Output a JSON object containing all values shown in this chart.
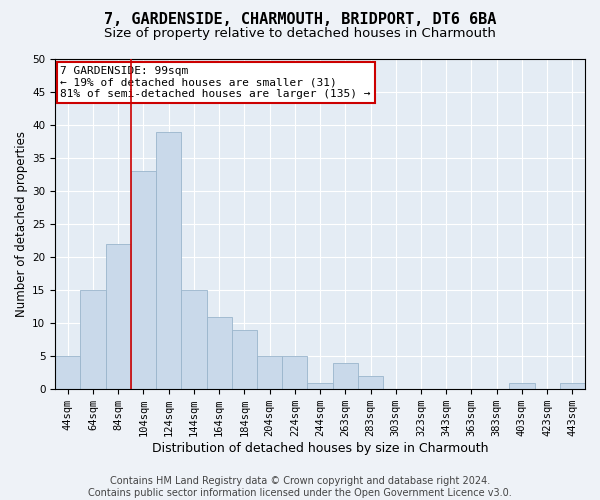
{
  "title1": "7, GARDENSIDE, CHARMOUTH, BRIDPORT, DT6 6BA",
  "title2": "Size of property relative to detached houses in Charmouth",
  "xlabel": "Distribution of detached houses by size in Charmouth",
  "ylabel": "Number of detached properties",
  "categories": [
    "44sqm",
    "64sqm",
    "84sqm",
    "104sqm",
    "124sqm",
    "144sqm",
    "164sqm",
    "184sqm",
    "204sqm",
    "224sqm",
    "244sqm",
    "263sqm",
    "283sqm",
    "303sqm",
    "323sqm",
    "343sqm",
    "363sqm",
    "383sqm",
    "403sqm",
    "423sqm",
    "443sqm"
  ],
  "values": [
    5,
    15,
    22,
    33,
    39,
    15,
    11,
    9,
    5,
    5,
    1,
    4,
    2,
    0,
    0,
    0,
    0,
    0,
    1,
    0,
    1
  ],
  "bar_color": "#c9d9ea",
  "bar_edge_color": "#9ab5cc",
  "vline_color": "#cc0000",
  "annotation_text": "7 GARDENSIDE: 99sqm\n← 19% of detached houses are smaller (31)\n81% of semi-detached houses are larger (135) →",
  "annotation_box_color": "#ffffff",
  "annotation_box_edge_color": "#cc0000",
  "ylim": [
    0,
    50
  ],
  "yticks": [
    0,
    5,
    10,
    15,
    20,
    25,
    30,
    35,
    40,
    45,
    50
  ],
  "footer1": "Contains HM Land Registry data © Crown copyright and database right 2024.",
  "footer2": "Contains public sector information licensed under the Open Government Licence v3.0.",
  "bg_color": "#eef2f7",
  "plot_bg_color": "#e4ecf4",
  "grid_color": "#ffffff",
  "title1_fontsize": 11,
  "title2_fontsize": 9.5,
  "xlabel_fontsize": 9,
  "ylabel_fontsize": 8.5,
  "tick_fontsize": 7.5,
  "footer_fontsize": 7,
  "annot_fontsize": 8
}
